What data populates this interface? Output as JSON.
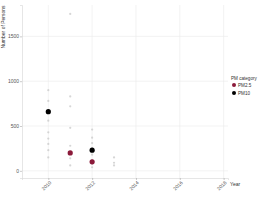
{
  "chart_data": {
    "type": "scatter",
    "x_label": "Year",
    "y_label": "Number of Persons",
    "legend_title": "PM category",
    "xlim": [
      2008.8,
      2018.2
    ],
    "xticks": [
      2010,
      2012,
      2014,
      2016,
      2018
    ],
    "ylim": [
      -80,
      1850
    ],
    "yticks": [
      0,
      500,
      1000,
      1500
    ],
    "grid": true,
    "legend": "right",
    "series": [
      {
        "color": "#cccccc",
        "marker": "circle",
        "x": [
          2010,
          2010,
          2010,
          2010,
          2010,
          2010,
          2010,
          2010,
          2011,
          2011,
          2011,
          2011,
          2011,
          2011,
          2011,
          2012,
          2012,
          2012,
          2012,
          2012,
          2012,
          2012,
          2012,
          2013,
          2013,
          2013
        ],
        "values": [
          900,
          780,
          560,
          430,
          360,
          300,
          230,
          150,
          1750,
          830,
          720,
          480,
          280,
          140,
          60,
          460,
          370,
          310,
          250,
          180,
          120,
          80,
          40,
          150,
          90,
          60
        ]
      },
      {
        "name": "PM2.5",
        "color": "#8b1a3a",
        "marker": "circle",
        "x": [
          2011,
          2012
        ],
        "values": [
          200,
          100
        ]
      },
      {
        "name": "PM10",
        "color": "#000000",
        "marker": "circle",
        "x": [
          2010,
          2012
        ],
        "values": [
          660,
          230
        ]
      }
    ]
  }
}
